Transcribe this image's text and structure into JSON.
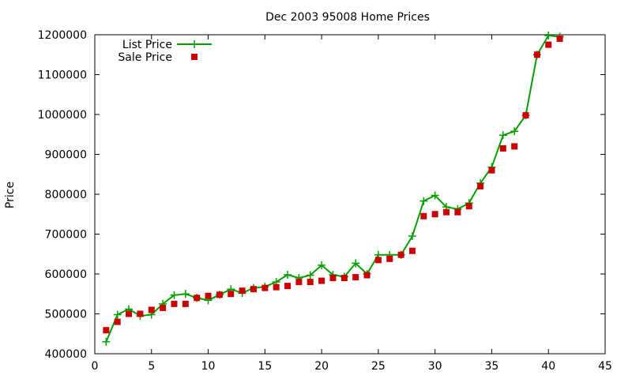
{
  "chart_data": {
    "type": "line",
    "title": "Dec 2003 95008 Home Prices",
    "xlabel": "",
    "ylabel": "Price",
    "xlim": [
      0,
      45
    ],
    "ylim": [
      400000,
      1200000
    ],
    "x_ticks": [
      0,
      5,
      10,
      15,
      20,
      25,
      30,
      35,
      40,
      45
    ],
    "y_ticks": [
      400000,
      500000,
      600000,
      700000,
      800000,
      900000,
      1000000,
      1100000,
      1200000
    ],
    "grid": false,
    "legend_position": "top-left",
    "series": [
      {
        "name": "List Price",
        "style": "line-with-plus-markers",
        "color": "#00a000",
        "x": [
          1,
          2,
          3,
          4,
          5,
          6,
          7,
          8,
          9,
          10,
          11,
          12,
          13,
          14,
          15,
          16,
          17,
          18,
          19,
          20,
          21,
          22,
          23,
          24,
          25,
          26,
          27,
          28,
          29,
          30,
          31,
          32,
          33,
          34,
          35,
          36,
          37,
          38,
          39,
          40,
          41
        ],
        "values": [
          430000,
          498000,
          512000,
          495000,
          498000,
          525000,
          547000,
          550000,
          540000,
          534000,
          548000,
          562000,
          552000,
          565000,
          568000,
          580000,
          598000,
          590000,
          597000,
          622000,
          598000,
          593000,
          627000,
          600000,
          648000,
          648000,
          648000,
          695000,
          783000,
          797000,
          768000,
          763000,
          778000,
          828000,
          868000,
          948000,
          958000,
          998000,
          1150000,
          1198000,
          1195000
        ]
      },
      {
        "name": "Sale Price",
        "style": "square-markers",
        "color": "#cc0000",
        "x": [
          1,
          2,
          3,
          4,
          5,
          6,
          7,
          8,
          9,
          10,
          11,
          12,
          13,
          14,
          15,
          16,
          17,
          18,
          19,
          20,
          21,
          22,
          23,
          24,
          25,
          26,
          27,
          28,
          29,
          30,
          31,
          32,
          33,
          34,
          35,
          36,
          37,
          38,
          39,
          40,
          41
        ],
        "values": [
          459000,
          480000,
          500000,
          500000,
          510000,
          515000,
          525000,
          525000,
          540000,
          545000,
          548000,
          550000,
          558000,
          562000,
          565000,
          567000,
          570000,
          580000,
          580000,
          583000,
          590000,
          590000,
          592000,
          597000,
          635000,
          638000,
          648000,
          658000,
          745000,
          750000,
          755000,
          755000,
          770000,
          820000,
          860000,
          915000,
          920000,
          998000,
          1150000,
          1175000,
          1190000
        ]
      }
    ]
  }
}
